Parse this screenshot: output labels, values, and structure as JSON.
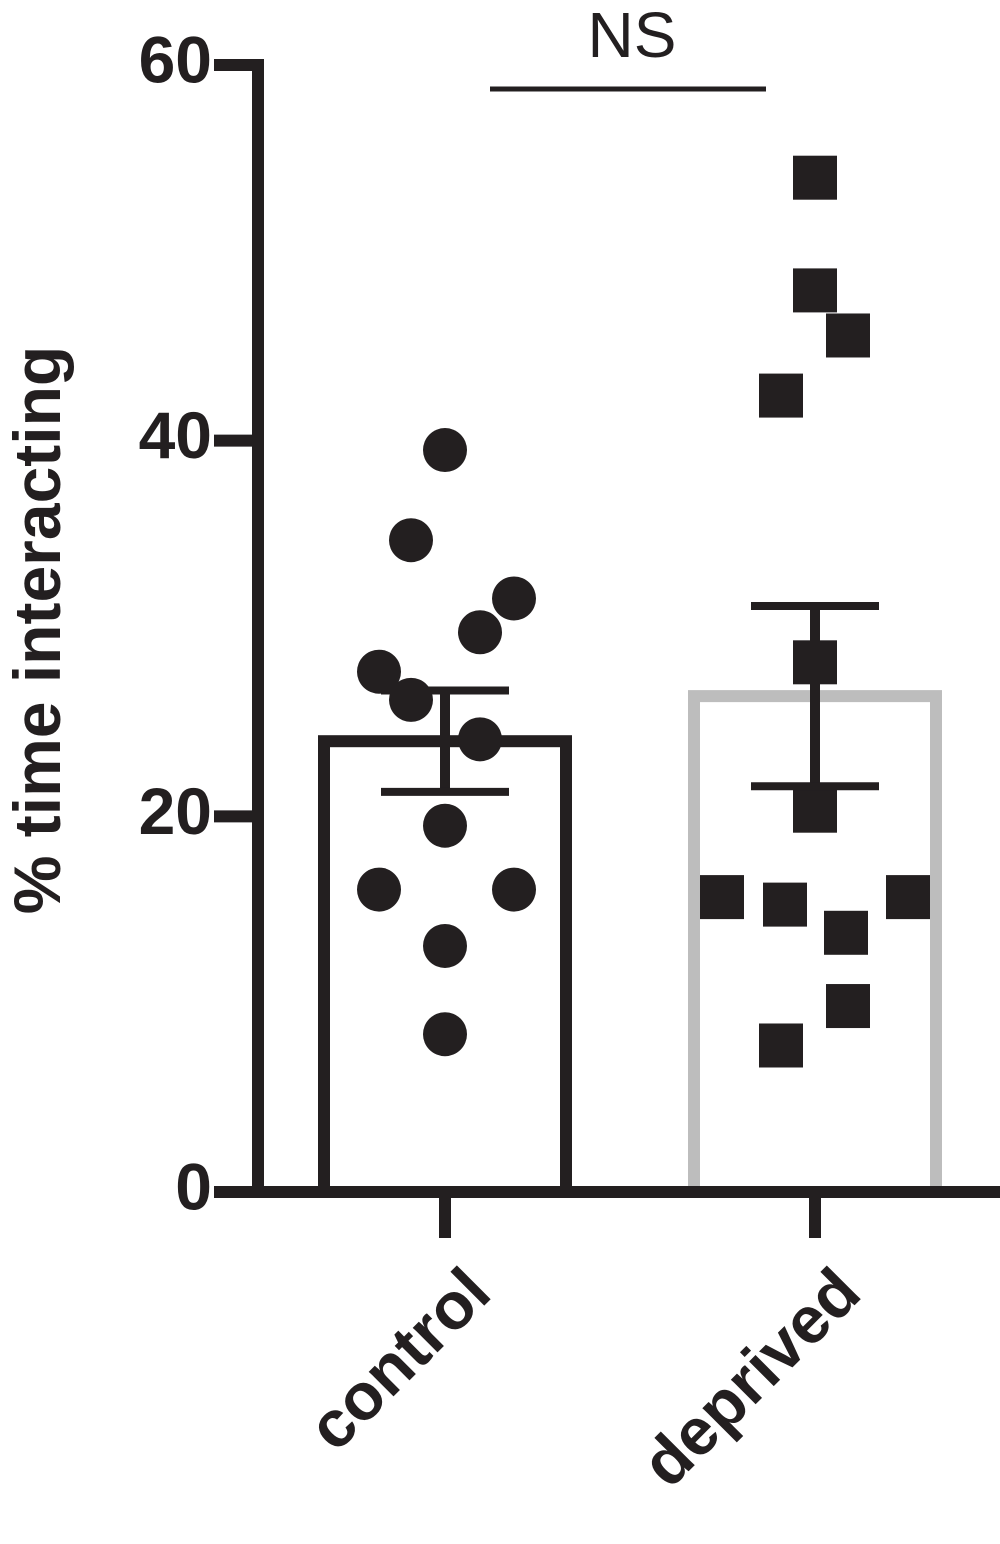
{
  "chart_data": {
    "type": "bar",
    "ylabel": "% time interacting",
    "annotation": "NS",
    "categories": [
      "control",
      "deprived"
    ],
    "values": [
      24,
      26.4
    ],
    "errors": [
      2.7,
      4.8
    ],
    "colors": [
      "#231f20",
      "#bdbdbd"
    ],
    "point_color": "#231f20",
    "points": [
      [
        39.5,
        34.7,
        31.6,
        29.8,
        27.7,
        26.2,
        24.1,
        19.5,
        16.1,
        16.1,
        13.1,
        8.4
      ],
      [
        54.0,
        48.0,
        45.6,
        42.4,
        28.2,
        20.3,
        15.7,
        15.3,
        15.7,
        13.8,
        9.9,
        7.8
      ]
    ],
    "ylim": [
      0,
      60
    ],
    "yticks": [
      0,
      20,
      40,
      60
    ]
  }
}
